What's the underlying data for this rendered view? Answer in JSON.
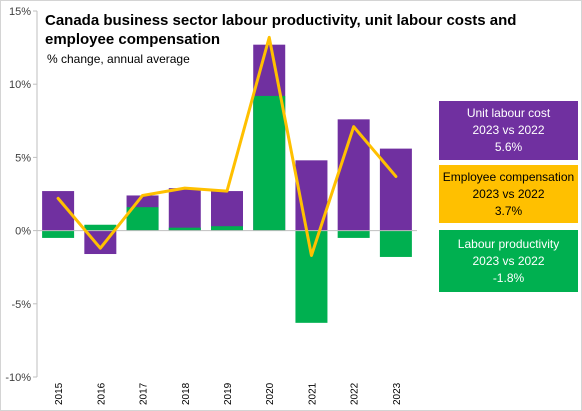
{
  "title": "Canada business sector labour productivity, unit labour costs and employee compensation",
  "subtitle": "% change, annual average",
  "callouts": {
    "unit_labour_cost": {
      "line1": "Unit labour cost",
      "line2": "2023 vs 2022",
      "line3": "5.6%"
    },
    "employee_compensation": {
      "line1": "Employee compensation",
      "line2": "2023 vs 2022",
      "line3": "3.7%"
    },
    "labour_productivity": {
      "line1": "Labour productivity",
      "line2": "2023 vs 2022",
      "line3": "-1.8%"
    }
  },
  "colors": {
    "unit_labour_cost": "#7030a0",
    "employee_compensation": "#ffc000",
    "labour_productivity": "#00b050"
  },
  "chart_data": {
    "type": "bar",
    "categories": [
      "2015",
      "2016",
      "2017",
      "2018",
      "2019",
      "2020",
      "2021",
      "2022",
      "2023"
    ],
    "series": [
      {
        "name": "Unit labour cost",
        "kind": "bar",
        "color": "#7030a0",
        "values": [
          2.7,
          -1.6,
          2.4,
          2.9,
          2.7,
          12.7,
          4.8,
          7.6,
          5.6
        ]
      },
      {
        "name": "Labour productivity",
        "kind": "bar",
        "color": "#00b050",
        "values": [
          -0.5,
          0.4,
          1.6,
          0.2,
          0.3,
          9.2,
          -6.3,
          -0.5,
          -1.8
        ]
      },
      {
        "name": "Employee compensation",
        "kind": "line",
        "color": "#ffc000",
        "values": [
          2.2,
          -1.2,
          2.4,
          2.9,
          2.7,
          13.2,
          -1.7,
          7.1,
          3.7
        ]
      }
    ],
    "yticks": [
      "15%",
      "10%",
      "5%",
      "0%",
      "-5%",
      "-10%"
    ],
    "ylim": [
      -10,
      15
    ],
    "xlabel": "",
    "ylabel": "",
    "grid": false,
    "legend": "callout boxes on the right"
  }
}
